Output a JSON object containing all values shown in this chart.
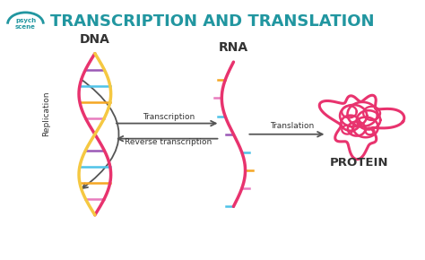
{
  "title": "TRANSCRIPTION AND TRANSLATION",
  "title_color": "#2196a0",
  "title_fontsize": 13,
  "bg_color": "#ffffff",
  "labels": {
    "dna": "DNA",
    "rna": "RNA",
    "protein": "PROTEIN",
    "replication": "Replication",
    "transcription": "Transcription",
    "reverse_transcription": "Reverse transcription",
    "translation": "Translation"
  },
  "dna_color_strand1": "#e8336e",
  "dna_color_strand2": "#f5c842",
  "rna_color": "#e8336e",
  "protein_color": "#e8336e",
  "bar_colors": [
    "#4fc3e8",
    "#e87cbe",
    "#f5a623",
    "#4fc3e8",
    "#9b59b6"
  ],
  "arrow_color": "#555555",
  "label_color": "#333333",
  "psych_logo_text": "psych\nscene"
}
